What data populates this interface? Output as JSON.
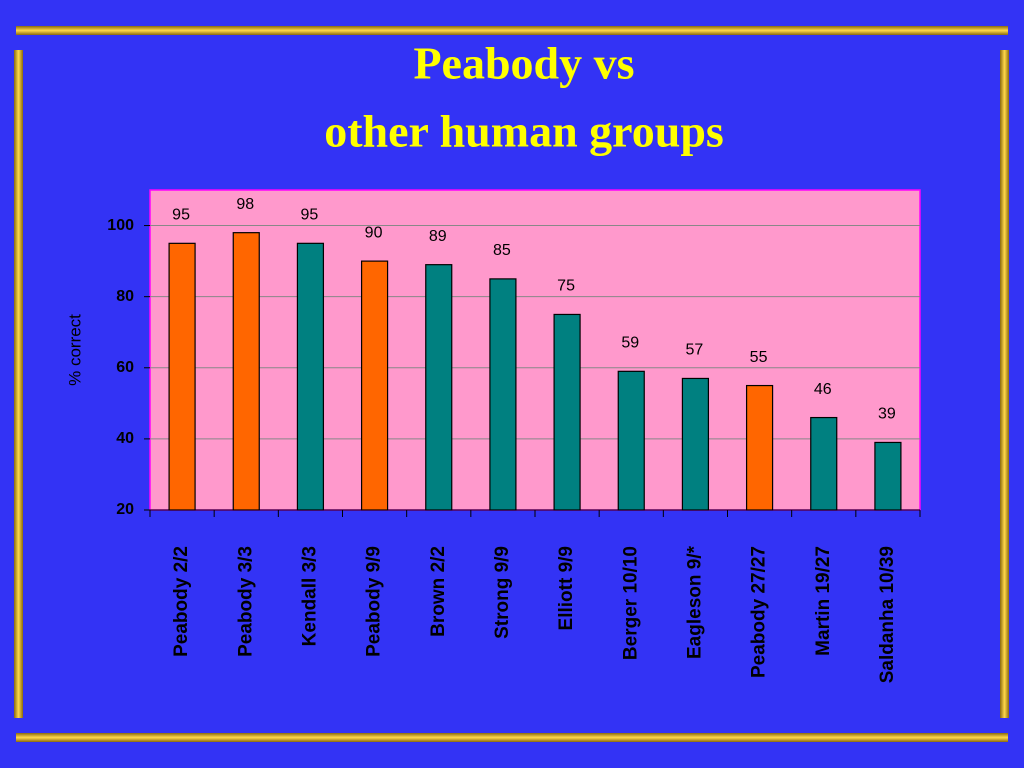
{
  "chart_data": {
    "type": "bar",
    "title": [
      "Peabody vs",
      "other human groups"
    ],
    "y_label": "% correct",
    "categories": [
      "Peabody 2/2",
      "Peabody 3/3",
      "Kendall 3/3",
      "Peabody 9/9",
      "Brown 2/2",
      "Strong 9/9",
      "Elliott 9/9",
      "Berger 10/10",
      "Eagleson 9/*",
      "Peabody 27/27",
      "Martin 19/27",
      "Saldanha 10/39"
    ],
    "values": [
      95,
      98,
      95,
      90,
      89,
      85,
      75,
      59,
      57,
      55,
      46,
      39
    ],
    "colors": [
      "#ff6600",
      "#ff6600",
      "#008080",
      "#ff6600",
      "#008080",
      "#008080",
      "#008080",
      "#008080",
      "#008080",
      "#ff6600",
      "#008080",
      "#008080"
    ],
    "ylim": [
      20,
      110
    ],
    "yticks": [
      20,
      40,
      60,
      80,
      100
    ],
    "grid": true
  }
}
